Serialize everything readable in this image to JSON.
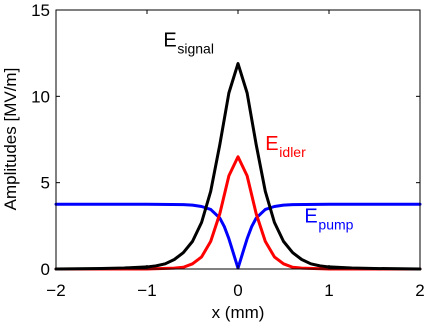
{
  "chart_data": {
    "type": "line",
    "xlabel": "x (mm)",
    "ylabel": "Amplitudes [MV/m]",
    "xlim": [
      -2,
      2
    ],
    "ylim": [
      0,
      15
    ],
    "xticks": [
      "−2",
      "−1",
      "0",
      "1",
      "2"
    ],
    "yticks": [
      "0",
      "5",
      "10",
      "15"
    ],
    "grid": false,
    "series": [
      {
        "name": "E_signal",
        "color": "#000000",
        "x": [
          -2.0,
          -1.5,
          -1.25,
          -1.0,
          -0.9,
          -0.8,
          -0.7,
          -0.6,
          -0.5,
          -0.4,
          -0.3,
          -0.2,
          -0.1,
          0.0,
          0.1,
          0.2,
          0.3,
          0.4,
          0.5,
          0.6,
          0.7,
          0.8,
          0.9,
          1.0,
          1.25,
          1.5,
          2.0
        ],
        "y": [
          0.0,
          0.03,
          0.06,
          0.12,
          0.18,
          0.3,
          0.55,
          0.95,
          1.6,
          2.7,
          4.5,
          7.2,
          10.2,
          11.9,
          10.2,
          7.2,
          4.5,
          2.7,
          1.6,
          0.95,
          0.55,
          0.3,
          0.18,
          0.12,
          0.06,
          0.03,
          0.0
        ]
      },
      {
        "name": "E_idler",
        "color": "#ff0000",
        "x": [
          -2.0,
          -1.0,
          -0.7,
          -0.6,
          -0.5,
          -0.4,
          -0.3,
          -0.2,
          -0.1,
          0.0,
          0.1,
          0.2,
          0.3,
          0.4,
          0.5,
          0.6,
          0.7,
          1.0,
          2.0
        ],
        "y": [
          0.0,
          0.0,
          0.05,
          0.1,
          0.3,
          0.7,
          1.6,
          3.2,
          5.4,
          6.5,
          5.4,
          3.2,
          1.6,
          0.7,
          0.3,
          0.1,
          0.05,
          0.0,
          0.0
        ]
      },
      {
        "name": "E_pump",
        "color": "#0000ff",
        "x": [
          -2.0,
          -1.0,
          -0.6,
          -0.5,
          -0.4,
          -0.3,
          -0.2,
          -0.15,
          -0.1,
          -0.05,
          0.0,
          0.05,
          0.1,
          0.15,
          0.2,
          0.3,
          0.4,
          0.5,
          0.6,
          1.0,
          2.0
        ],
        "y": [
          3.75,
          3.75,
          3.73,
          3.7,
          3.62,
          3.45,
          2.95,
          2.45,
          1.75,
          0.9,
          0.05,
          0.9,
          1.75,
          2.45,
          2.95,
          3.45,
          3.62,
          3.7,
          3.73,
          3.75,
          3.75
        ]
      }
    ],
    "annotations": [
      {
        "id": "signal",
        "main": "E",
        "sub": "signal",
        "color": "#000000",
        "x": -0.82,
        "y": 12.9
      },
      {
        "id": "idler",
        "main": "E",
        "sub": "idler",
        "color": "#ff0000",
        "x": 0.3,
        "y": 6.9
      },
      {
        "id": "pump",
        "main": "E",
        "sub": "pump",
        "color": "#0000ff",
        "x": 0.73,
        "y": 2.7
      }
    ]
  }
}
